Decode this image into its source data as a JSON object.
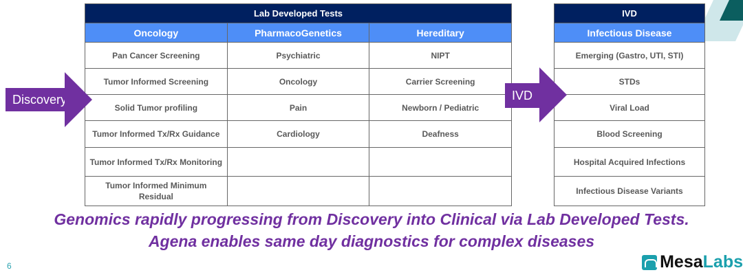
{
  "ldt": {
    "title": "Lab Developed Tests",
    "columns": [
      "Oncology",
      "PharmacoGenetics",
      "Hereditary"
    ],
    "rows": [
      [
        "Pan Cancer Screening",
        "Psychiatric",
        "NIPT"
      ],
      [
        "Tumor Informed Screening",
        "Oncology",
        "Carrier Screening"
      ],
      [
        "Solid Tumor profiling",
        "Pain",
        "Newborn / Pediatric"
      ],
      [
        "Tumor Informed Tx/Rx Guidance",
        "Cardiology",
        "Deafness"
      ],
      [
        "Tumor Informed Tx/Rx Monitoring",
        "",
        ""
      ],
      [
        "Tumor Informed Minimum Residual",
        "",
        ""
      ]
    ]
  },
  "ivd": {
    "title": "IVD",
    "column": "Infectious Disease",
    "rows": [
      "Emerging (Gastro, UTI, STI)",
      "STDs",
      "Viral Load",
      "Blood Screening",
      "Hospital Acquired Infections",
      "Infectious Disease Variants"
    ]
  },
  "arrows": {
    "discovery": "Discovery",
    "ivd": "IVD"
  },
  "claim": [
    "Genomics rapidly progressing from Discovery into Clinical via Lab Developed Tests.",
    "Agena enables same day diagnostics for complex diseases"
  ],
  "page_number": "6",
  "logo": {
    "a": "Mesa",
    "b": "Labs"
  }
}
